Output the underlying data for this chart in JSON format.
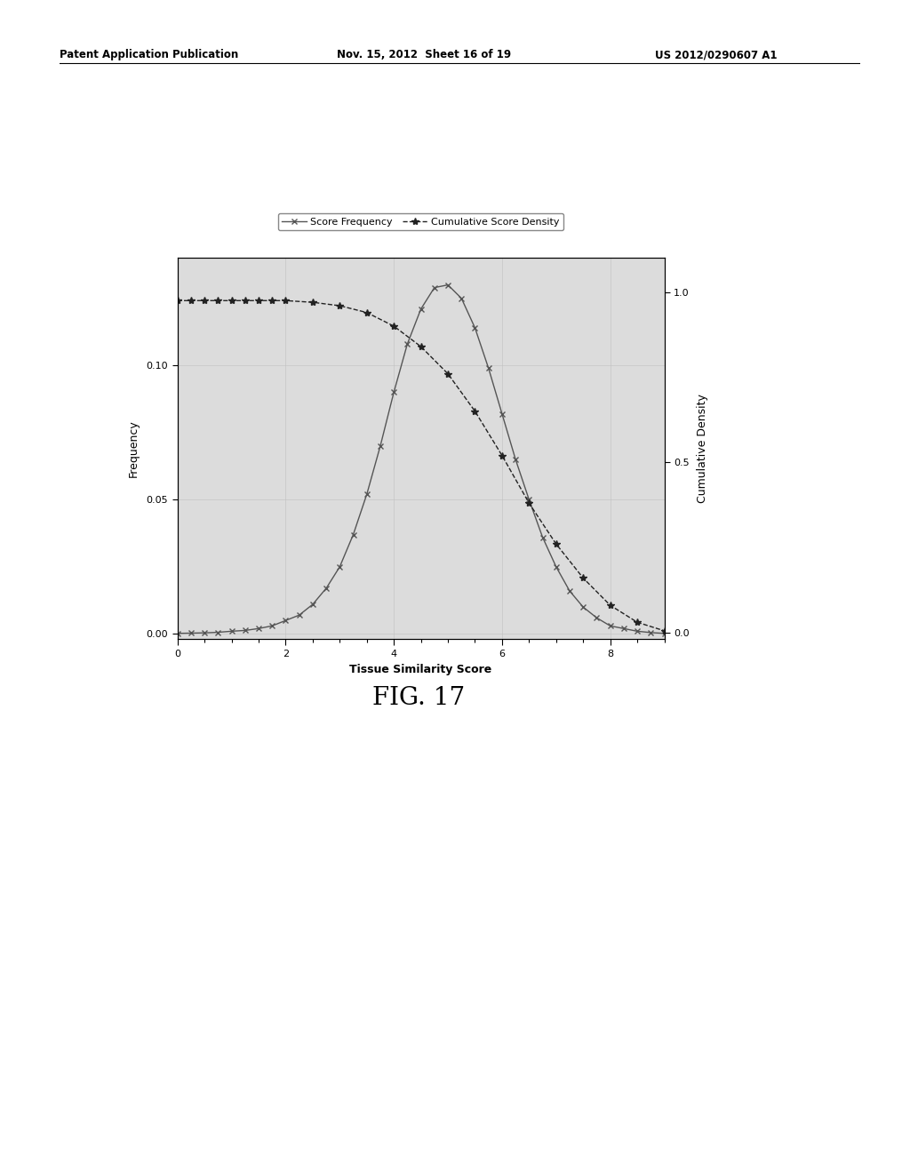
{
  "title": "FIG. 17",
  "header_left": "Patent Application Publication",
  "header_mid": "Nov. 15, 2012  Sheet 16 of 19",
  "header_right": "US 2012/0290607 A1",
  "xlabel": "Tissue Similarity Score",
  "ylabel_left": "Frequency",
  "ylabel_right": "Cumulative Density",
  "legend_freq": "Score Frequency",
  "legend_cum": "Cumulative Score Density",
  "score_freq_x": [
    0.0,
    0.25,
    0.5,
    0.75,
    1.0,
    1.25,
    1.5,
    1.75,
    2.0,
    2.25,
    2.5,
    2.75,
    3.0,
    3.25,
    3.5,
    3.75,
    4.0,
    4.25,
    4.5,
    4.75,
    5.0,
    5.25,
    5.5,
    5.75,
    6.0,
    6.25,
    6.5,
    6.75,
    7.0,
    7.25,
    7.5,
    7.75,
    8.0,
    8.25,
    8.5,
    8.75,
    9.0
  ],
  "score_freq_y": [
    0.0002,
    0.0003,
    0.0004,
    0.0006,
    0.001,
    0.0013,
    0.002,
    0.003,
    0.005,
    0.007,
    0.011,
    0.017,
    0.025,
    0.037,
    0.052,
    0.07,
    0.09,
    0.108,
    0.121,
    0.129,
    0.13,
    0.125,
    0.114,
    0.099,
    0.082,
    0.065,
    0.05,
    0.036,
    0.025,
    0.016,
    0.01,
    0.006,
    0.003,
    0.002,
    0.001,
    0.0005,
    0.0002
  ],
  "cum_density_x": [
    0.0,
    0.25,
    0.5,
    0.75,
    1.0,
    1.25,
    1.5,
    1.75,
    2.0,
    2.5,
    3.0,
    3.5,
    4.0,
    4.5,
    5.0,
    5.5,
    6.0,
    6.5,
    7.0,
    7.5,
    8.0,
    8.5,
    9.0
  ],
  "cum_density_y": [
    0.975,
    0.975,
    0.975,
    0.975,
    0.975,
    0.975,
    0.975,
    0.975,
    0.975,
    0.97,
    0.96,
    0.94,
    0.9,
    0.84,
    0.76,
    0.65,
    0.52,
    0.38,
    0.26,
    0.16,
    0.08,
    0.03,
    0.005
  ],
  "background_color": "#dcdcdc",
  "line_color": "#555555",
  "cum_line_color": "#222222",
  "xlim": [
    0,
    9
  ],
  "ylim_left": [
    -0.002,
    0.14
  ],
  "ylim_right": [
    -0.02,
    1.1
  ],
  "xticks": [
    0,
    2,
    4,
    6,
    8
  ],
  "yticks_left": [
    0.0,
    0.05,
    0.1
  ],
  "yticks_right": [
    0.0,
    0.5,
    1.0
  ]
}
